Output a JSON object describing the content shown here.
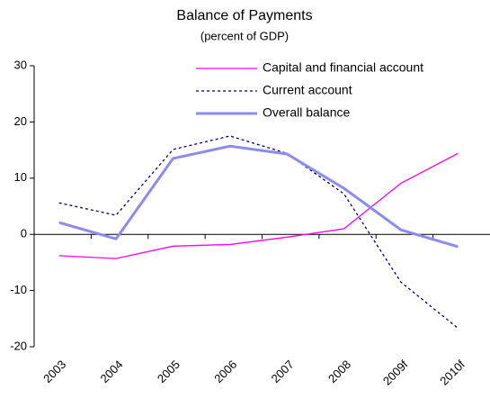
{
  "chart_data": {
    "type": "line",
    "title": "Balance of Payments",
    "subtitle": "(percent of GDP)",
    "categories": [
      "2003",
      "2004",
      "2005",
      "2006",
      "2007",
      "2008",
      "2009f",
      "2010f"
    ],
    "series": [
      {
        "name": "Capital and financial account",
        "color": "#ff00ff",
        "values": [
          -3.8,
          -4.3,
          -2.1,
          -1.8,
          -0.5,
          1.0,
          9.1,
          14.4
        ]
      },
      {
        "name": "Current account",
        "color": "#000080",
        "dash": "dotted",
        "values": [
          5.6,
          3.4,
          15.1,
          17.5,
          14.4,
          7.2,
          -8.5,
          -16.7
        ]
      },
      {
        "name": "Overall balance",
        "color": "#8c8cf0",
        "width": 3,
        "values": [
          2.1,
          -0.8,
          13.5,
          15.7,
          14.3,
          8.2,
          0.8,
          -2.2
        ]
      }
    ],
    "ylim": [
      -20,
      30
    ],
    "yticks": [
      -20,
      -10,
      0,
      10,
      20,
      30
    ],
    "legend": "upper right"
  }
}
